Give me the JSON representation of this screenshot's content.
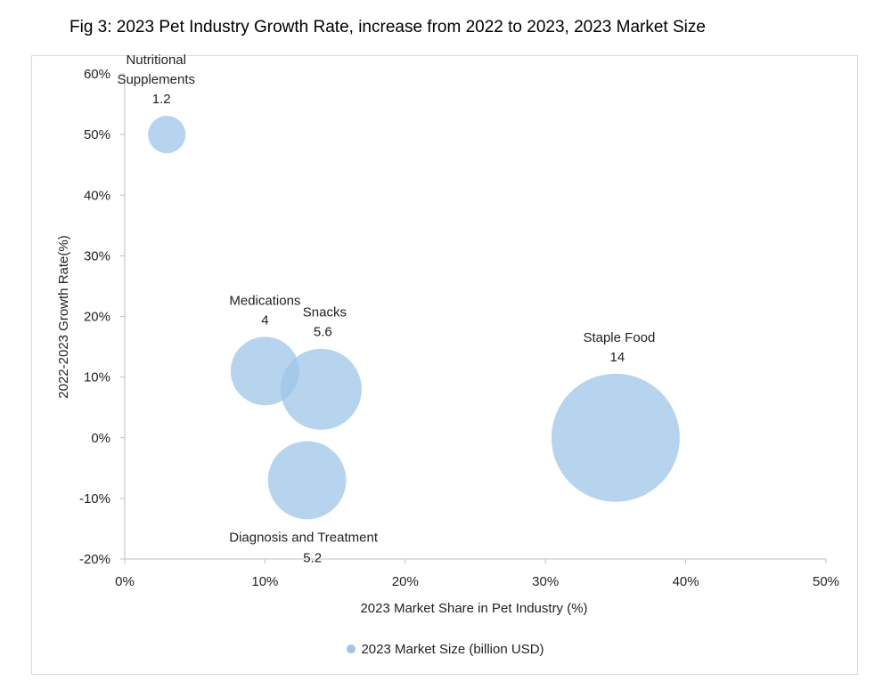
{
  "figure": {
    "title": "Fig 3: 2023 Pet Industry Growth Rate, increase from 2022 to 2023, 2023 Market Size"
  },
  "chart_data": {
    "type": "scatter",
    "subtype": "bubble",
    "xlabel": "2023 Market Share in Pet Industry (%)",
    "ylabel": "2022-2023 Growth Rate(%)",
    "xlim": [
      0,
      50
    ],
    "ylim": [
      -20,
      60
    ],
    "x_ticks": [
      "0%",
      "10%",
      "20%",
      "30%",
      "40%",
      "50%"
    ],
    "y_ticks": [
      "-20%",
      "-10%",
      "0%",
      "10%",
      "20%",
      "30%",
      "40%",
      "50%",
      "60%"
    ],
    "grid": false,
    "legend_position": "bottom",
    "series": [
      {
        "name": "2023 Market Size (billion USD)",
        "color": "#9fc5e8",
        "points": [
          {
            "label": "Nutritional Supplements",
            "value_label": "1.2",
            "x": 3,
            "y": 50,
            "size": 1.2
          },
          {
            "label": "Medications",
            "value_label": "4",
            "x": 10,
            "y": 11,
            "size": 4
          },
          {
            "label": "Snacks",
            "value_label": "5.6",
            "x": 14,
            "y": 8,
            "size": 5.6
          },
          {
            "label": "Diagnosis and Treatment",
            "value_label": "5.2",
            "x": 13,
            "y": -7,
            "size": 5.2
          },
          {
            "label": "Staple Food",
            "value_label": "14",
            "x": 35,
            "y": 0,
            "size": 14
          }
        ]
      }
    ]
  }
}
